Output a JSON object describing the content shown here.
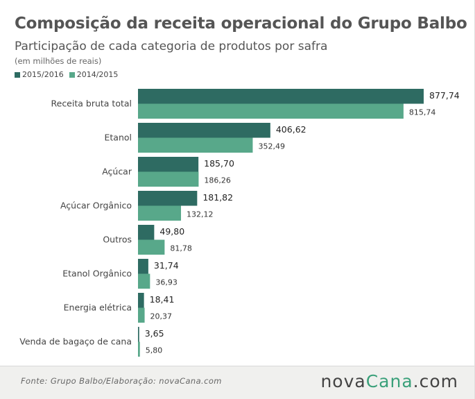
{
  "title": "Composição da receita operacional do Grupo Balbo",
  "subtitle": "Participação de cada categoria de produtos por safra",
  "unit_note": "(em milhões de reais)",
  "legend": [
    {
      "label": "2015/2016",
      "color": "#2e6b62"
    },
    {
      "label": "2014/2015",
      "color": "#58a88a"
    }
  ],
  "source": "Fonte:  Grupo  Balbo/Elaboração:  novaCana.com",
  "logo": {
    "nova": "nova",
    "cana": "Cana",
    "com": ".com"
  },
  "chart_data": {
    "type": "bar",
    "orientation": "horizontal",
    "categories": [
      "Receita bruta total",
      "Etanol",
      "Açúcar",
      "Açúcar Orgânico",
      "Outros",
      "Etanol Orgânico",
      "Energia elétrica",
      "Venda de bagaço de cana"
    ],
    "series": [
      {
        "name": "2015/2016",
        "color": "#2e6b62",
        "values": [
          877.74,
          406.62,
          185.7,
          181.82,
          49.8,
          31.74,
          18.41,
          3.65
        ],
        "labels": [
          "877,74",
          "406,62",
          "185,70",
          "181,82",
          "49,80",
          "31,74",
          "18,41",
          "3,65"
        ]
      },
      {
        "name": "2014/2015",
        "color": "#58a88a",
        "values": [
          815.74,
          352.49,
          186.26,
          132.12,
          81.78,
          36.93,
          20.37,
          5.8
        ],
        "labels": [
          "815,74",
          "352,49",
          "186,26",
          "132,12",
          "81,78",
          "36,93",
          "20,37",
          "5,80"
        ]
      }
    ],
    "xlim": [
      0,
      877.74
    ],
    "grid": false,
    "legend_position": "top-left"
  }
}
